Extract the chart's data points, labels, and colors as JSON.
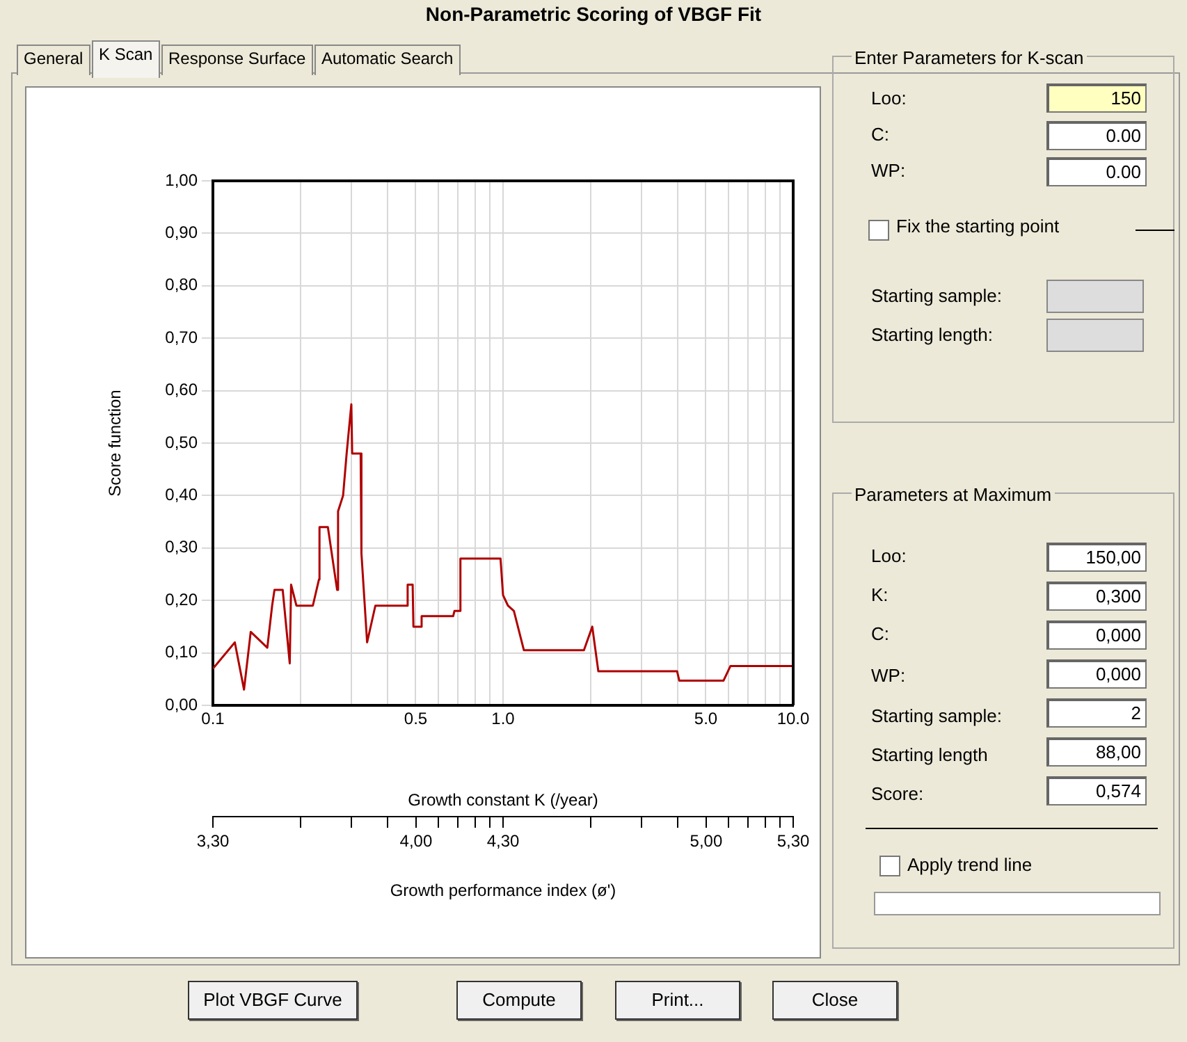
{
  "chart_data": {
    "type": "line",
    "title": "Non-Parametric Scoring of VBGF Fit",
    "xlabel": "Growth constant K (/year)",
    "ylabel": "Score function",
    "x2label": "Growth performance index (ø')",
    "log": "x",
    "grid": true,
    "legend": false,
    "marker": "none",
    "line_style": "solid",
    "color": "#b00000",
    "x": [
      0.1,
      0.119,
      0.128,
      0.135,
      0.154,
      0.16,
      0.163,
      0.174,
      0.184,
      0.186,
      0.194,
      0.221,
      0.232,
      0.233,
      0.249,
      0.268,
      0.27,
      0.281,
      0.289,
      0.3,
      0.302,
      0.323,
      0.325,
      0.34,
      0.363,
      0.466,
      0.469,
      0.488,
      0.491,
      0.521,
      0.524,
      0.673,
      0.68,
      0.71,
      0.713,
      0.98,
      1.0,
      1.04,
      1.09,
      1.18,
      1.9,
      2.03,
      2.13,
      3.98,
      4.05,
      5.75,
      6.08,
      10.0
    ],
    "values": [
      0.07,
      0.12,
      0.03,
      0.14,
      0.11,
      0.19,
      0.22,
      0.22,
      0.08,
      0.23,
      0.19,
      0.19,
      0.24,
      0.34,
      0.34,
      0.22,
      0.37,
      0.4,
      0.48,
      0.574,
      0.48,
      0.48,
      0.29,
      0.12,
      0.19,
      0.19,
      0.23,
      0.23,
      0.15,
      0.15,
      0.17,
      0.17,
      0.18,
      0.18,
      0.28,
      0.28,
      0.21,
      0.19,
      0.18,
      0.105,
      0.105,
      0.15,
      0.065,
      0.065,
      0.047,
      0.047,
      0.075,
      0.075
    ],
    "xlim": [
      0.1,
      10
    ],
    "xticks": [
      0.1,
      {
        "value": 0.2,
        "label": null
      },
      {
        "value": 0.3,
        "label": null
      },
      {
        "value": 0.4,
        "label": null
      },
      0.5,
      {
        "value": 0.6,
        "label": null
      },
      {
        "value": 0.7,
        "label": null
      },
      {
        "value": 0.8,
        "label": null
      },
      {
        "value": 0.9,
        "label": null
      },
      {
        "value": 1,
        "label": "1.0"
      },
      {
        "value": 2,
        "label": null
      },
      {
        "value": 3,
        "label": null
      },
      {
        "value": 4,
        "label": null
      },
      {
        "value": 5,
        "label": "5.0"
      },
      {
        "value": 6,
        "label": null
      },
      {
        "value": 7,
        "label": null
      },
      {
        "value": 8,
        "label": null
      },
      {
        "value": 9,
        "label": null
      },
      {
        "value": 10,
        "label": "10.0"
      }
    ],
    "x2lim": [
      3.3,
      5.3
    ],
    "x2ticks": [
      {
        "value": 3.3,
        "label": "3,30"
      },
      {
        "value": 3.601,
        "label": null
      },
      {
        "value": 3.777,
        "label": null
      },
      {
        "value": 3.902,
        "label": null
      },
      {
        "value": 4.0,
        "label": "4,00"
      },
      {
        "value": 4.078,
        "label": null
      },
      {
        "value": 4.145,
        "label": null
      },
      {
        "value": 4.203,
        "label": null
      },
      {
        "value": 4.254,
        "label": null
      },
      {
        "value": 4.3,
        "label": "4,30"
      },
      {
        "value": 4.601,
        "label": null
      },
      {
        "value": 4.777,
        "label": null
      },
      {
        "value": 4.902,
        "label": null
      },
      {
        "value": 5.0,
        "label": "5,00"
      },
      {
        "value": 5.078,
        "label": null
      },
      {
        "value": 5.145,
        "label": null
      },
      {
        "value": 5.203,
        "label": null
      },
      {
        "value": 5.254,
        "label": null
      },
      {
        "value": 5.3,
        "label": "5,30"
      }
    ],
    "ylim": [
      0,
      1
    ],
    "yticks": [
      {
        "value": 0,
        "label": "0,00"
      },
      {
        "value": 0.1,
        "label": "0,10"
      },
      {
        "value": 0.2,
        "label": "0,20"
      },
      {
        "value": 0.3,
        "label": "0,30"
      },
      {
        "value": 0.4,
        "label": "0,40"
      },
      {
        "value": 0.5,
        "label": "0,50"
      },
      {
        "value": 0.6,
        "label": "0,60"
      },
      {
        "value": 0.7,
        "label": "0,70"
      },
      {
        "value": 0.8,
        "label": "0,80"
      },
      {
        "value": 0.9,
        "label": "0,90"
      },
      {
        "value": 1,
        "label": "1,00"
      }
    ],
    "annotations": [
      "General",
      "K Scan",
      "Response Surface",
      "Automatic Search",
      "Enter Parameters for K-scan",
      "Loo:",
      "150",
      "C:",
      "0.00",
      "WP:",
      "0.00",
      "Fix the starting point",
      "Starting sample:",
      "Starting length:",
      "Parameters at Maximum",
      "Loo:",
      "150,00",
      "K:",
      "0,300",
      "C:",
      "0,000",
      "WP:",
      "0,000",
      "Starting sample:",
      "2",
      "Starting length",
      "88,00",
      "Score:",
      "0,574",
      "Apply trend line",
      "Plot VBGF Curve",
      "Compute",
      "Print...",
      "Close"
    ]
  }
}
